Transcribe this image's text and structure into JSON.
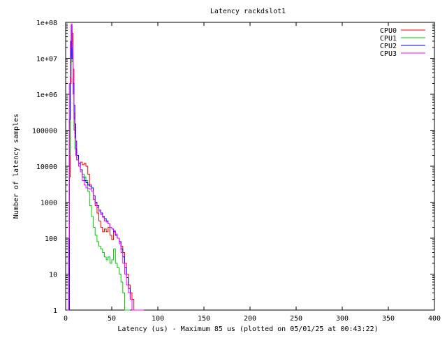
{
  "chart_data": {
    "type": "line",
    "title": "Latency rackdslot1",
    "xlabel": "Latency (us) - Maximum 85 us (plotted on 05/01/25 at 00:43:22)",
    "ylabel": "Number of latency samples",
    "xlim": [
      0,
      400
    ],
    "ylim": [
      1,
      100000000
    ],
    "yscale": "log",
    "xticks": [
      0,
      50,
      100,
      150,
      200,
      250,
      300,
      350,
      400
    ],
    "xtick_labels": [
      "0",
      "50",
      "100",
      "150",
      "200",
      "250",
      "300",
      "350",
      "400"
    ],
    "yticks": [
      1,
      10,
      100,
      1000,
      10000,
      100000,
      1000000,
      10000000,
      100000000
    ],
    "ytick_labels": [
      "1",
      "10",
      "100",
      "1000",
      "10000",
      "100000",
      "1e+06",
      "1e+07",
      "1e+08"
    ],
    "grid": false,
    "legend_position": "top-right",
    "series": [
      {
        "name": "CPU0",
        "color": "#ff0000",
        "x": [
          3,
          4,
          5,
          6,
          7,
          8,
          9,
          10,
          11,
          12,
          14,
          16,
          18,
          20,
          22,
          24,
          26,
          28,
          30,
          32,
          34,
          36,
          38,
          40,
          42,
          44,
          46,
          48,
          50,
          52,
          54,
          56,
          58,
          60,
          62,
          64,
          66,
          68,
          70,
          72,
          74,
          76
        ],
        "y": [
          1,
          5000,
          2000000,
          30000000,
          50000000,
          5000000,
          300000,
          80000,
          30000,
          15000,
          12000,
          13000,
          11000,
          12000,
          10000,
          6000,
          3000,
          2000,
          1200,
          800,
          500,
          300,
          200,
          150,
          180,
          150,
          200,
          120,
          90,
          150,
          120,
          100,
          80,
          60,
          40,
          20,
          10,
          5,
          3,
          2,
          1,
          1
        ]
      },
      {
        "name": "CPU1",
        "color": "#00cc00",
        "x": [
          3,
          4,
          5,
          6,
          7,
          8,
          9,
          10,
          11,
          12,
          14,
          16,
          18,
          20,
          22,
          24,
          26,
          28,
          30,
          32,
          34,
          36,
          38,
          40,
          42,
          44,
          46,
          48,
          50,
          52,
          54,
          56,
          58,
          60,
          62,
          64,
          66,
          68,
          70
        ],
        "y": [
          300,
          20000,
          3000000,
          60000000,
          8000000,
          1000000,
          100000,
          30000,
          20000,
          15000,
          10000,
          8000,
          6000,
          5000,
          4000,
          2000,
          800,
          400,
          200,
          120,
          80,
          60,
          50,
          40,
          30,
          25,
          30,
          20,
          25,
          50,
          20,
          15,
          10,
          6,
          3,
          1,
          1,
          1,
          1
        ]
      },
      {
        "name": "CPU2",
        "color": "#0000ff",
        "x": [
          3,
          4,
          5,
          6,
          7,
          8,
          9,
          10,
          11,
          12,
          14,
          16,
          18,
          20,
          22,
          24,
          26,
          28,
          30,
          32,
          34,
          36,
          38,
          40,
          42,
          44,
          46,
          48,
          50,
          52,
          54,
          56,
          58,
          60,
          62,
          64,
          66,
          68,
          70,
          72,
          74
        ],
        "y": [
          1,
          200000,
          10000000,
          80000000,
          10000000,
          2000000,
          500000,
          150000,
          50000,
          20000,
          12000,
          8000,
          5000,
          4000,
          3500,
          3000,
          2800,
          2500,
          1500,
          1000,
          800,
          600,
          500,
          400,
          350,
          300,
          250,
          200,
          180,
          150,
          120,
          100,
          80,
          50,
          30,
          15,
          8,
          4,
          2,
          1,
          1
        ]
      },
      {
        "name": "CPU3",
        "color": "#ff00ff",
        "x": [
          2,
          3,
          4,
          5,
          6,
          7,
          8,
          9,
          10,
          11,
          12,
          14,
          16,
          18,
          20,
          22,
          24,
          26,
          28,
          30,
          32,
          34,
          36,
          38,
          40,
          42,
          44,
          46,
          48,
          50,
          52,
          54,
          56,
          58,
          60,
          62,
          64,
          66,
          68,
          70,
          72,
          74,
          76,
          80,
          85
        ],
        "y": [
          1,
          100,
          2000000,
          30000000,
          90000000,
          20000000,
          1000000,
          200000,
          60000,
          20000,
          15000,
          10000,
          7000,
          4000,
          3000,
          2500,
          2400,
          2300,
          2000,
          1200,
          900,
          700,
          550,
          450,
          380,
          300,
          280,
          250,
          200,
          180,
          160,
          130,
          100,
          70,
          40,
          20,
          10,
          5,
          3,
          2,
          1,
          1,
          1,
          1,
          1
        ]
      }
    ]
  }
}
